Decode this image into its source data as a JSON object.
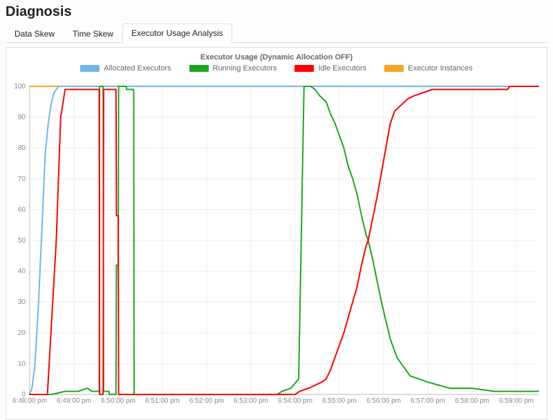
{
  "page_title": "Diagnosis",
  "tabs": [
    {
      "label": "Data Skew",
      "active": false
    },
    {
      "label": "Time Skew",
      "active": false
    },
    {
      "label": "Executor Usage Analysis",
      "active": true
    }
  ],
  "chart": {
    "type": "line",
    "title": "Executor Usage (Dynamic Allocation OFF)",
    "title_fontsize": 11,
    "label_fontsize": 10,
    "background_color": "#ffffff",
    "grid_color": "#eeeeee",
    "axis_color": "#bbbbbb",
    "line_width": 2,
    "ylim": [
      0,
      100
    ],
    "ytick_step": 10,
    "y_ticks": [
      0,
      10,
      20,
      30,
      40,
      50,
      60,
      70,
      80,
      90,
      100
    ],
    "xlim_min": 48.0,
    "xlim_max": 59.5,
    "x_ticks": [
      {
        "v": 48.0,
        "label": "6:48:00 pm"
      },
      {
        "v": 49.0,
        "label": "6:49:00 pm"
      },
      {
        "v": 50.0,
        "label": "6:50:00 pm"
      },
      {
        "v": 51.0,
        "label": "6:51:00 pm"
      },
      {
        "v": 52.0,
        "label": "6:52:00 pm"
      },
      {
        "v": 53.0,
        "label": "6:53:00 pm"
      },
      {
        "v": 54.0,
        "label": "6:54:00 pm"
      },
      {
        "v": 55.0,
        "label": "6:55:00 pm"
      },
      {
        "v": 56.0,
        "label": "6:56:00 pm"
      },
      {
        "v": 57.0,
        "label": "6:57:00 pm"
      },
      {
        "v": 58.0,
        "label": "6:58:00 pm"
      },
      {
        "v": 59.0,
        "label": "6:59:00 pm"
      }
    ],
    "legend": [
      {
        "label": "Allocated Executors",
        "color": "#6fb7e9"
      },
      {
        "label": "Running Executors",
        "color": "#19a81f"
      },
      {
        "label": "Idle Executors",
        "color": "#ff0000"
      },
      {
        "label": "Executor Instances",
        "color": "#f6a623"
      }
    ],
    "series": {
      "allocated": {
        "color": "#6fb7e9",
        "points": [
          [
            48.0,
            0
          ],
          [
            48.05,
            2
          ],
          [
            48.12,
            10
          ],
          [
            48.2,
            30
          ],
          [
            48.28,
            55
          ],
          [
            48.35,
            78
          ],
          [
            48.42,
            88
          ],
          [
            48.48,
            94
          ],
          [
            48.55,
            98
          ],
          [
            48.65,
            100
          ],
          [
            48.8,
            100
          ],
          [
            49.57,
            100
          ],
          [
            50.0,
            100
          ],
          [
            51.0,
            100
          ],
          [
            52.0,
            100
          ],
          [
            53.0,
            100
          ],
          [
            54.0,
            100
          ],
          [
            55.0,
            100
          ],
          [
            56.0,
            100
          ],
          [
            57.0,
            100
          ],
          [
            58.0,
            100
          ],
          [
            59.0,
            100
          ],
          [
            59.5,
            100
          ]
        ]
      },
      "instances": {
        "color": "#f6a623",
        "points": [
          [
            48.0,
            100
          ],
          [
            59.5,
            100
          ]
        ]
      },
      "running": {
        "color": "#19a81f",
        "points": [
          [
            48.0,
            0
          ],
          [
            48.5,
            0
          ],
          [
            48.8,
            1
          ],
          [
            49.1,
            1
          ],
          [
            49.3,
            2
          ],
          [
            49.4,
            1
          ],
          [
            49.53,
            1
          ],
          [
            49.57,
            1
          ],
          [
            49.58,
            100
          ],
          [
            49.66,
            100
          ],
          [
            49.67,
            1
          ],
          [
            49.79,
            1
          ],
          [
            49.8,
            0
          ],
          [
            49.95,
            0
          ],
          [
            49.96,
            42
          ],
          [
            50.0,
            42
          ],
          [
            50.01,
            100
          ],
          [
            50.18,
            100
          ],
          [
            50.19,
            99
          ],
          [
            50.35,
            99
          ],
          [
            50.36,
            0
          ],
          [
            50.6,
            0
          ],
          [
            51.0,
            0
          ],
          [
            52.0,
            0
          ],
          [
            53.0,
            0
          ],
          [
            53.6,
            0
          ],
          [
            53.7,
            1
          ],
          [
            53.9,
            2
          ],
          [
            54.08,
            5
          ],
          [
            54.2,
            100
          ],
          [
            54.35,
            100
          ],
          [
            54.45,
            99
          ],
          [
            54.55,
            97
          ],
          [
            54.7,
            95
          ],
          [
            54.8,
            91
          ],
          [
            54.9,
            88
          ],
          [
            55.0,
            84
          ],
          [
            55.1,
            80
          ],
          [
            55.2,
            74
          ],
          [
            55.3,
            70
          ],
          [
            55.4,
            65
          ],
          [
            55.5,
            58
          ],
          [
            55.6,
            52
          ],
          [
            55.65,
            50
          ],
          [
            55.75,
            44
          ],
          [
            55.85,
            37
          ],
          [
            55.95,
            30
          ],
          [
            56.05,
            24
          ],
          [
            56.15,
            18
          ],
          [
            56.3,
            12
          ],
          [
            56.45,
            9
          ],
          [
            56.6,
            6
          ],
          [
            56.8,
            5
          ],
          [
            57.0,
            4
          ],
          [
            57.25,
            3
          ],
          [
            57.5,
            2
          ],
          [
            58.0,
            2
          ],
          [
            58.5,
            1
          ],
          [
            59.0,
            1
          ],
          [
            59.5,
            1
          ]
        ]
      },
      "idle": {
        "color": "#ff0000",
        "points": [
          [
            48.0,
            0
          ],
          [
            48.2,
            0
          ],
          [
            48.4,
            0
          ],
          [
            48.6,
            50
          ],
          [
            48.7,
            90
          ],
          [
            48.8,
            99
          ],
          [
            48.9,
            99
          ],
          [
            49.1,
            99
          ],
          [
            49.3,
            99
          ],
          [
            49.5,
            99
          ],
          [
            49.57,
            99
          ],
          [
            49.58,
            0
          ],
          [
            49.66,
            0
          ],
          [
            49.67,
            99
          ],
          [
            49.79,
            99
          ],
          [
            49.8,
            99
          ],
          [
            49.95,
            99
          ],
          [
            49.96,
            58
          ],
          [
            50.0,
            58
          ],
          [
            50.01,
            0
          ],
          [
            50.18,
            0
          ],
          [
            50.19,
            0
          ],
          [
            50.35,
            0
          ],
          [
            50.36,
            0
          ],
          [
            50.45,
            0
          ],
          [
            50.6,
            0
          ],
          [
            51.0,
            0
          ],
          [
            52.0,
            0
          ],
          [
            53.0,
            0
          ],
          [
            53.6,
            0
          ],
          [
            53.7,
            0
          ],
          [
            53.9,
            0
          ],
          [
            54.0,
            0
          ],
          [
            54.1,
            1
          ],
          [
            54.3,
            2
          ],
          [
            54.45,
            3
          ],
          [
            54.6,
            4
          ],
          [
            54.7,
            5
          ],
          [
            54.8,
            8
          ],
          [
            54.9,
            12
          ],
          [
            55.0,
            16
          ],
          [
            55.1,
            20
          ],
          [
            55.2,
            25
          ],
          [
            55.3,
            30
          ],
          [
            55.4,
            35
          ],
          [
            55.5,
            42
          ],
          [
            55.6,
            48
          ],
          [
            55.65,
            50
          ],
          [
            55.75,
            57
          ],
          [
            55.85,
            64
          ],
          [
            55.95,
            72
          ],
          [
            56.05,
            80
          ],
          [
            56.15,
            88
          ],
          [
            56.25,
            92
          ],
          [
            56.4,
            94
          ],
          [
            56.55,
            96
          ],
          [
            56.7,
            97
          ],
          [
            56.9,
            98
          ],
          [
            57.1,
            99
          ],
          [
            57.4,
            99
          ],
          [
            57.8,
            99
          ],
          [
            58.2,
            99
          ],
          [
            58.6,
            99
          ],
          [
            58.8,
            99
          ],
          [
            58.85,
            100
          ],
          [
            59.0,
            100
          ],
          [
            59.5,
            100
          ]
        ]
      }
    }
  }
}
